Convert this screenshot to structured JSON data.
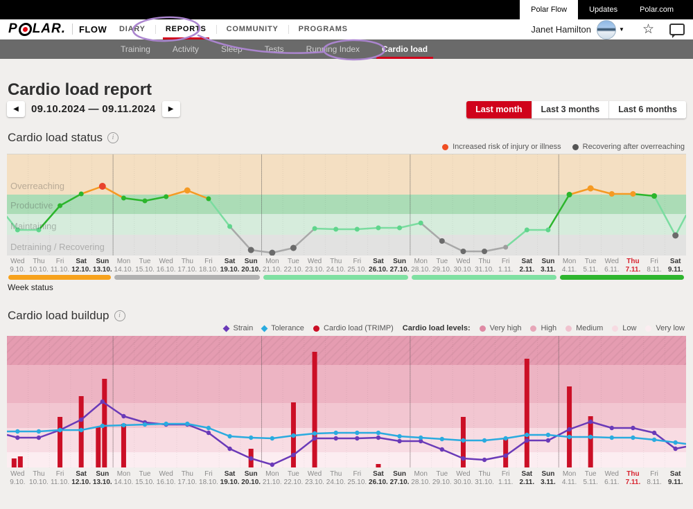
{
  "chrome": {
    "top_tabs": [
      {
        "label": "Polar Flow",
        "active": true
      },
      {
        "label": "Updates",
        "active": false
      },
      {
        "label": "Polar.com",
        "active": false
      }
    ],
    "brand": {
      "logo_prefix": "P",
      "logo_suffix": "LAR.",
      "product": "FLOW"
    },
    "nav": [
      {
        "label": "DIARY",
        "active": false
      },
      {
        "label": "REPORTS",
        "active": true
      },
      {
        "label": "COMMUNITY",
        "active": false
      },
      {
        "label": "PROGRAMS",
        "active": false
      }
    ],
    "user": {
      "name": "Janet Hamilton"
    },
    "subnav": [
      {
        "label": "Training",
        "active": false
      },
      {
        "label": "Activity",
        "active": false
      },
      {
        "label": "Sleep",
        "active": false
      },
      {
        "label": "Tests",
        "active": false
      },
      {
        "label": "Running Index",
        "active": false
      },
      {
        "label": "Cardio load",
        "active": true
      }
    ],
    "annotation_color": "#ab85cf"
  },
  "page": {
    "title": "Cardio load report",
    "date_range": "09.10.2024 — 09.11.2024",
    "range_buttons": [
      {
        "label": "Last month",
        "active": true
      },
      {
        "label": "Last 3 months",
        "active": false
      },
      {
        "label": "Last 6 months",
        "active": false
      }
    ],
    "week_status_label": "Week status"
  },
  "chart_data": [
    {
      "type": "line",
      "title": "Cardio load status",
      "legend": [
        {
          "label": "Increased risk of injury or illness",
          "color": "#f04e23"
        },
        {
          "label": "Recovering after overreaching",
          "color": "#555555"
        }
      ],
      "value_scale": "cardio-load-status relative units, 0 = chart bottom, 146 = chart top",
      "zones": [
        {
          "label": "Overreaching",
          "from": 88,
          "to": 146,
          "color": "#f4dfc2"
        },
        {
          "label": "Productive",
          "from": 60,
          "to": 88,
          "color": "#abdcb6"
        },
        {
          "label": "Maintaining",
          "from": 30,
          "to": 60,
          "color": "#d6ecdc"
        },
        {
          "label": "Detraining / Recovering",
          "from": 0,
          "to": 30,
          "color": "#e2e2e1"
        }
      ],
      "days": [
        {
          "dow": "Wed",
          "date": "9.10.",
          "emphasis": null
        },
        {
          "dow": "Thu",
          "date": "10.10.",
          "emphasis": null
        },
        {
          "dow": "Fri",
          "date": "11.10.",
          "emphasis": null
        },
        {
          "dow": "Sat",
          "date": "12.10.",
          "emphasis": "bold"
        },
        {
          "dow": "Sun",
          "date": "13.10.",
          "emphasis": "bold"
        },
        {
          "dow": "Mon",
          "date": "14.10.",
          "emphasis": null
        },
        {
          "dow": "Tue",
          "date": "15.10.",
          "emphasis": null
        },
        {
          "dow": "Wed",
          "date": "16.10.",
          "emphasis": null
        },
        {
          "dow": "Thu",
          "date": "17.10.",
          "emphasis": null
        },
        {
          "dow": "Fri",
          "date": "18.10.",
          "emphasis": null
        },
        {
          "dow": "Sat",
          "date": "19.10.",
          "emphasis": "bold"
        },
        {
          "dow": "Sun",
          "date": "20.10.",
          "emphasis": "bold"
        },
        {
          "dow": "Mon",
          "date": "21.10.",
          "emphasis": null
        },
        {
          "dow": "Tue",
          "date": "22.10.",
          "emphasis": null
        },
        {
          "dow": "Wed",
          "date": "23.10.",
          "emphasis": null
        },
        {
          "dow": "Thu",
          "date": "24.10.",
          "emphasis": null
        },
        {
          "dow": "Fri",
          "date": "25.10.",
          "emphasis": null
        },
        {
          "dow": "Sat",
          "date": "26.10.",
          "emphasis": "bold"
        },
        {
          "dow": "Sun",
          "date": "27.10.",
          "emphasis": "bold"
        },
        {
          "dow": "Mon",
          "date": "28.10.",
          "emphasis": null
        },
        {
          "dow": "Tue",
          "date": "29.10.",
          "emphasis": null
        },
        {
          "dow": "Wed",
          "date": "30.10.",
          "emphasis": null
        },
        {
          "dow": "Thu",
          "date": "31.10.",
          "emphasis": null
        },
        {
          "dow": "Fri",
          "date": "1.11.",
          "emphasis": null
        },
        {
          "dow": "Sat",
          "date": "2.11.",
          "emphasis": "bold"
        },
        {
          "dow": "Sun",
          "date": "3.11.",
          "emphasis": "bold"
        },
        {
          "dow": "Mon",
          "date": "4.11.",
          "emphasis": null
        },
        {
          "dow": "Tue",
          "date": "5.11.",
          "emphasis": null
        },
        {
          "dow": "Wed",
          "date": "6.11.",
          "emphasis": null
        },
        {
          "dow": "Thu",
          "date": "7.11.",
          "emphasis": "today"
        },
        {
          "dow": "Fri",
          "date": "8.11.",
          "emphasis": null
        },
        {
          "dow": "Sat",
          "date": "9.11.",
          "emphasis": "bold"
        }
      ],
      "points": [
        {
          "d": 0.5,
          "v": 56,
          "c": null
        },
        {
          "d": 1,
          "v": 37,
          "c": "#5fd58c",
          "r": 3.5
        },
        {
          "d": 2,
          "v": 37,
          "c": "#5fd58c",
          "r": 3.5
        },
        {
          "d": 3,
          "v": 72,
          "c": "#2cb52c",
          "r": 3.5
        },
        {
          "d": 4,
          "v": 89,
          "c": "#2cb52c",
          "r": 3.5
        },
        {
          "d": 5,
          "v": 100,
          "c": "#e8432c",
          "r": 5
        },
        {
          "d": 6,
          "v": 83,
          "c": "#2cb52c",
          "r": 3.5
        },
        {
          "d": 7,
          "v": 79,
          "c": "#2cb52c",
          "r": 3.5
        },
        {
          "d": 8,
          "v": 85,
          "c": "#2cb52c",
          "r": 3.5
        },
        {
          "d": 9,
          "v": 94,
          "c": "#f59a23",
          "r": 4.5
        },
        {
          "d": 10,
          "v": 82,
          "c": "#2cb52c",
          "r": 3.5
        },
        {
          "d": 11,
          "v": 42,
          "c": "#5fd58c",
          "r": 3.5
        },
        {
          "d": 12,
          "v": 8,
          "c": "#6b6b6b",
          "r": 4.5
        },
        {
          "d": 13,
          "v": 4,
          "c": "#6b6b6b",
          "r": 4.5
        },
        {
          "d": 14,
          "v": 11,
          "c": "#6b6b6b",
          "r": 4.5
        },
        {
          "d": 15,
          "v": 39,
          "c": "#5fd58c",
          "r": 3.5
        },
        {
          "d": 16,
          "v": 38,
          "c": "#5fd58c",
          "r": 3.5
        },
        {
          "d": 17,
          "v": 38,
          "c": "#5fd58c",
          "r": 3.5
        },
        {
          "d": 18,
          "v": 40,
          "c": "#5fd58c",
          "r": 3.5
        },
        {
          "d": 19,
          "v": 40,
          "c": "#5fd58c",
          "r": 3.5
        },
        {
          "d": 20,
          "v": 47,
          "c": "#5fd58c",
          "r": 3.5
        },
        {
          "d": 21,
          "v": 21,
          "c": "#6b6b6b",
          "r": 4
        },
        {
          "d": 22,
          "v": 6,
          "c": "#6b6b6b",
          "r": 4
        },
        {
          "d": 23,
          "v": 6,
          "c": "#6b6b6b",
          "r": 4
        },
        {
          "d": 24,
          "v": 12,
          "c": "#9e9e9e",
          "r": 3.5
        },
        {
          "d": 25,
          "v": 37,
          "c": "#5fd58c",
          "r": 3.5
        },
        {
          "d": 26,
          "v": 37,
          "c": "#5fd58c",
          "r": 3.5
        },
        {
          "d": 27,
          "v": 88,
          "c": "#2cb52c",
          "r": 4
        },
        {
          "d": 28,
          "v": 97,
          "c": "#f59a23",
          "r": 4.5
        },
        {
          "d": 29,
          "v": 89,
          "c": "#f59a23",
          "r": 4
        },
        {
          "d": 30,
          "v": 89,
          "c": "#f59a23",
          "r": 4
        },
        {
          "d": 31,
          "v": 86,
          "c": "#2cb52c",
          "r": 4
        },
        {
          "d": 32,
          "v": 29,
          "c": "#6b6b6b",
          "r": 4.5
        },
        {
          "d": 32.5,
          "v": 58,
          "c": null
        }
      ],
      "segment_colors": [
        "#7bdca0",
        "#7bdca0",
        "#2cb52c",
        "#2cb52c",
        "#f59a23",
        "#f59a23",
        "#2cb52c",
        "#2cb52c",
        "#f59a23",
        "#f59a23",
        "#7bdca0",
        "#a8a8a8",
        "#a8a8a8",
        "#a8a8a8",
        "#a8a8a8",
        "#7bdca0",
        "#7bdca0",
        "#7bdca0",
        "#7bdca0",
        "#7bdca0",
        "#a8a8a8",
        "#a8a8a8",
        "#a8a8a8",
        "#a8a8a8",
        "#7bdca0",
        "#7bdca0",
        "#2cb52c",
        "#f59a23",
        "#f59a23",
        "#f59a23",
        "#2cb52c",
        "#7bdca0",
        "#7bdca0"
      ],
      "week_separators_after_day": [
        5,
        12,
        19,
        26
      ],
      "week_status_segments": [
        {
          "from_day": 1,
          "to_day": 5,
          "color": "#f7a21c"
        },
        {
          "from_day": 6,
          "to_day": 12,
          "color": "#b1b1b1"
        },
        {
          "from_day": 13,
          "to_day": 19,
          "color": "#7fe0a2"
        },
        {
          "from_day": 20,
          "to_day": 26,
          "color": "#7fe0a2"
        },
        {
          "from_day": 27,
          "to_day": 32,
          "color": "#2eb52e"
        }
      ]
    },
    {
      "type": "bar+line",
      "title": "Cardio load buildup",
      "legend_series": [
        {
          "label": "Strain",
          "color": "#6a3ab8",
          "marker": "diamond"
        },
        {
          "label": "Tolerance",
          "color": "#2aabdf",
          "marker": "diamond"
        },
        {
          "label": "Cardio load (TRIMP)",
          "color": "#cb0f26",
          "marker": "circle"
        }
      ],
      "legend_levels_label": "Cardio load levels:",
      "levels": [
        {
          "label": "Very high",
          "from": 148,
          "to": 190,
          "color": "#e59cb1",
          "legend_color": "#df8aa4",
          "hatched": true
        },
        {
          "label": "High",
          "from": 93,
          "to": 148,
          "color": "#edb4c3",
          "legend_color": "#e7a6b8",
          "hatched": false
        },
        {
          "label": "Medium",
          "from": 57,
          "to": 93,
          "color": "#f2c6d1",
          "legend_color": "#f0c2ce",
          "hatched": false
        },
        {
          "label": "Low",
          "from": 22,
          "to": 57,
          "color": "#f8dce3",
          "legend_color": "#f7dbe2",
          "hatched": false
        },
        {
          "label": "Very low",
          "from": 0,
          "to": 22,
          "color": "#fcedf1",
          "legend_color": "#fcedf1",
          "hatched": false
        }
      ],
      "value_scale": "TRIMP relative units, 0 = chart bottom, 190 = chart top",
      "bars": [
        {
          "d": 1,
          "v": 13,
          "dx": -5
        },
        {
          "d": 1,
          "v": 16,
          "dx": 4
        },
        {
          "d": 3,
          "v": 73,
          "dx": 0
        },
        {
          "d": 4,
          "v": 103,
          "dx": 0
        },
        {
          "d": 5,
          "v": 58,
          "dx": -6
        },
        {
          "d": 5,
          "v": 128,
          "dx": 3
        },
        {
          "d": 6,
          "v": 63,
          "dx": 0
        },
        {
          "d": 12,
          "v": 27,
          "dx": 0
        },
        {
          "d": 14,
          "v": 94,
          "dx": 0
        },
        {
          "d": 15,
          "v": 167,
          "dx": 0
        },
        {
          "d": 18,
          "v": 5,
          "dx": 0
        },
        {
          "d": 22,
          "v": 73,
          "dx": 0
        },
        {
          "d": 24,
          "v": 42,
          "dx": 0
        },
        {
          "d": 25,
          "v": 157,
          "dx": 0
        },
        {
          "d": 27,
          "v": 117,
          "dx": 0
        },
        {
          "d": 28,
          "v": 74,
          "dx": 0
        }
      ],
      "series": [
        {
          "name": "Strain",
          "color": "#6a3ab8",
          "points": [
            [
              0.5,
              47
            ],
            [
              1,
              43
            ],
            [
              2,
              43
            ],
            [
              3,
              54
            ],
            [
              4,
              69
            ],
            [
              5,
              95
            ],
            [
              6,
              74
            ],
            [
              7,
              65
            ],
            [
              8,
              62
            ],
            [
              9,
              62
            ],
            [
              10,
              50
            ],
            [
              11,
              27
            ],
            [
              12,
              13
            ],
            [
              13,
              4
            ],
            [
              14,
              18
            ],
            [
              15,
              42
            ],
            [
              16,
              42
            ],
            [
              17,
              42
            ],
            [
              18,
              43
            ],
            [
              19,
              38
            ],
            [
              20,
              38
            ],
            [
              21,
              26
            ],
            [
              22,
              13
            ],
            [
              23,
              11
            ],
            [
              24,
              17
            ],
            [
              25,
              39
            ],
            [
              26,
              39
            ],
            [
              27,
              55
            ],
            [
              28,
              66
            ],
            [
              29,
              57
            ],
            [
              30,
              57
            ],
            [
              31,
              50
            ],
            [
              32,
              27
            ],
            [
              32.5,
              30
            ]
          ]
        },
        {
          "name": "Tolerance",
          "color": "#2aabdf",
          "points": [
            [
              0.5,
              52
            ],
            [
              1,
              52
            ],
            [
              2,
              52
            ],
            [
              3,
              54
            ],
            [
              4,
              54
            ],
            [
              5,
              60
            ],
            [
              6,
              61
            ],
            [
              7,
              62
            ],
            [
              8,
              63
            ],
            [
              9,
              63
            ],
            [
              10,
              57
            ],
            [
              11,
              45
            ],
            [
              12,
              43
            ],
            [
              13,
              42
            ],
            [
              14,
              46
            ],
            [
              15,
              49
            ],
            [
              16,
              50
            ],
            [
              17,
              50
            ],
            [
              18,
              50
            ],
            [
              19,
              45
            ],
            [
              20,
              43
            ],
            [
              21,
              41
            ],
            [
              22,
              39
            ],
            [
              23,
              39
            ],
            [
              24,
              42
            ],
            [
              25,
              47
            ],
            [
              26,
              47
            ],
            [
              27,
              44
            ],
            [
              28,
              44
            ],
            [
              29,
              43
            ],
            [
              30,
              43
            ],
            [
              31,
              40
            ],
            [
              32,
              36
            ],
            [
              32.5,
              34
            ]
          ]
        }
      ],
      "week_separators_after_day": [
        5,
        12,
        19,
        26
      ]
    }
  ]
}
